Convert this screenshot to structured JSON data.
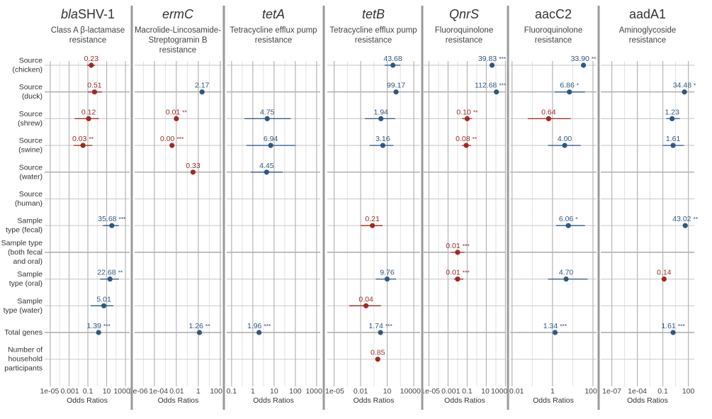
{
  "chart_data": {
    "type": "forest",
    "x_scale": "log",
    "xlabel": "Odds Ratios",
    "colors": {
      "positive": "#2f5782",
      "negative": "#9e2a24"
    },
    "rows": [
      {
        "lines": [
          "Source",
          "(chicken)"
        ]
      },
      {
        "lines": [
          "Source",
          "(duck)"
        ]
      },
      {
        "lines": [
          "Source",
          "(shrew)"
        ]
      },
      {
        "lines": [
          "Source",
          "(swine)"
        ]
      },
      {
        "lines": [
          "Source",
          "(water)"
        ]
      },
      {
        "lines": [
          "Source",
          "(human)"
        ]
      },
      {
        "lines": [
          "Sample",
          "type (fecal)"
        ]
      },
      {
        "lines": [
          "Sample type",
          "(both fecal",
          "and oral)"
        ]
      },
      {
        "lines": [
          "Sample",
          "type (oral)"
        ]
      },
      {
        "lines": [
          "Sample",
          "type (water)"
        ]
      },
      {
        "lines": [
          "Total genes"
        ]
      },
      {
        "lines": [
          "Number of",
          "household",
          "participants"
        ]
      }
    ],
    "panels": [
      {
        "gene_italic": "bla",
        "gene_plain": "SHV-1",
        "subtitle": [
          "Class A β-lactamase",
          "resistance"
        ],
        "xlim": [
          2.5e-06,
          2800
        ],
        "ticks": [
          "1e-05",
          "0.001",
          "0.1",
          "10",
          "1000"
        ],
        "tick_values": [
          1e-05,
          0.001,
          0.1,
          10,
          1000
        ],
        "points": [
          {
            "row": 0,
            "or": 0.23,
            "label": "0.23",
            "sig": "",
            "ci": [
              0.08,
              0.6
            ]
          },
          {
            "row": 1,
            "or": 0.51,
            "label": "0.51",
            "sig": "",
            "ci": [
              0.1,
              3
            ]
          },
          {
            "row": 2,
            "or": 0.12,
            "label": "0.12",
            "sig": "",
            "ci": [
              0.004,
              1.5
            ]
          },
          {
            "row": 3,
            "or": 0.03,
            "label": "0.03",
            "sig": "**",
            "ci": [
              0.003,
              0.3
            ]
          },
          {
            "row": 6,
            "or": 35.68,
            "label": "35.68",
            "sig": "***",
            "ci": [
              4,
              200
            ]
          },
          {
            "row": 8,
            "or": 22.68,
            "label": "22.68",
            "sig": "**",
            "ci": [
              2,
              200
            ]
          },
          {
            "row": 9,
            "or": 5.01,
            "label": "5.01",
            "sig": "",
            "ci": [
              0.2,
              50
            ]
          },
          {
            "row": 10,
            "or": 1.39,
            "label": "1.39",
            "sig": "***",
            "ci": null
          }
        ]
      },
      {
        "gene_italic": "ermC",
        "gene_plain": "",
        "subtitle": [
          "Macrolide-Lincosamide-",
          "Streptogramin B",
          "resistance"
        ],
        "xlim": [
          1.6e-06,
          135
        ],
        "ticks": [
          "1e-06",
          "1e-04",
          "0.01",
          "1",
          "100"
        ],
        "tick_values": [
          1e-06,
          0.0001,
          0.01,
          1,
          100
        ],
        "points": [
          {
            "row": 1,
            "or": 2.17,
            "label": "2.17",
            "sig": "",
            "ci": null
          },
          {
            "row": 2,
            "or": 0.01,
            "label": "0.01",
            "sig": "**",
            "ci": null
          },
          {
            "row": 3,
            "or": 0.004,
            "label": "0.00",
            "sig": "***",
            "ci": null
          },
          {
            "row": 4,
            "or": 0.33,
            "label": "0.33",
            "sig": "",
            "ci": null
          },
          {
            "row": 10,
            "or": 1.26,
            "label": "1.26",
            "sig": "**",
            "ci": null
          }
        ]
      },
      {
        "gene_italic": "tetA",
        "gene_plain": "",
        "subtitle": [
          "Tetracycline efflux pump",
          "resistance"
        ],
        "xlim": [
          0.059,
          1480
        ],
        "ticks": [
          "0.1",
          "1",
          "10",
          "100",
          "1000"
        ],
        "tick_values": [
          0.1,
          1,
          10,
          100,
          1000
        ],
        "points": [
          {
            "row": 2,
            "or": 4.75,
            "label": "4.75",
            "sig": "",
            "ci": [
              0.4,
              60
            ]
          },
          {
            "row": 3,
            "or": 6.94,
            "label": "6.94",
            "sig": "",
            "ci": [
              0.5,
              100
            ]
          },
          {
            "row": 4,
            "or": 4.45,
            "label": "4.45",
            "sig": "",
            "ci": [
              0.8,
              25
            ]
          },
          {
            "row": 10,
            "or": 1.96,
            "label": "1.96",
            "sig": "***",
            "ci": null
          }
        ]
      },
      {
        "gene_italic": "tetB",
        "gene_plain": "",
        "subtitle": [
          "Tetracycline efflux pump",
          "resistance"
        ],
        "xlim": [
          1.7e-06,
          52000
        ],
        "ticks": [
          "1e-05",
          "0.01",
          "10",
          "10000"
        ],
        "tick_values": [
          1e-05,
          0.01,
          10,
          10000
        ],
        "points": [
          {
            "row": 0,
            "or": 43.68,
            "label": "43.68",
            "sig": "",
            "ci": [
              5,
              300
            ]
          },
          {
            "row": 1,
            "or": 99.17,
            "label": "99.17",
            "sig": "",
            "ci": null
          },
          {
            "row": 2,
            "or": 1.94,
            "label": "1.94",
            "sig": "",
            "ci": [
              0.03,
              80
            ]
          },
          {
            "row": 3,
            "or": 3.16,
            "label": "3.16",
            "sig": "",
            "ci": [
              0.1,
              50
            ]
          },
          {
            "row": 6,
            "or": 0.21,
            "label": "0.21",
            "sig": "",
            "ci": [
              0.01,
              3
            ]
          },
          {
            "row": 8,
            "or": 9.76,
            "label": "9.76",
            "sig": "",
            "ci": [
              0.5,
              100
            ]
          },
          {
            "row": 9,
            "or": 0.04,
            "label": "0.04",
            "sig": "",
            "ci": [
              0.0005,
              2
            ]
          },
          {
            "row": 10,
            "or": 1.74,
            "label": "1.74",
            "sig": "***",
            "ci": null
          },
          {
            "row": 11,
            "or": 0.85,
            "label": "0.85",
            "sig": "",
            "ci": null
          }
        ]
      },
      {
        "gene_italic": "QnrS",
        "gene_plain": "",
        "subtitle": [
          "Fluoroquinolone",
          "resistance"
        ],
        "xlim": [
          2.8e-06,
          1100
        ],
        "ticks": [
          "1e-05",
          "0.001",
          "0.1",
          "10",
          "1000"
        ],
        "tick_values": [
          1e-05,
          0.001,
          0.1,
          10,
          1000
        ],
        "points": [
          {
            "row": 0,
            "or": 39.83,
            "label": "39.83",
            "sig": "***",
            "ci": null
          },
          {
            "row": 1,
            "or": 112.68,
            "label": "112.68",
            "sig": "***",
            "ci": null
          },
          {
            "row": 2,
            "or": 0.1,
            "label": "0.10",
            "sig": "**",
            "ci": [
              0.03,
              0.3
            ]
          },
          {
            "row": 3,
            "or": 0.08,
            "label": "0.08",
            "sig": "**",
            "ci": [
              0.03,
              0.25
            ]
          },
          {
            "row": 7,
            "or": 0.01,
            "label": "0.01",
            "sig": "***",
            "ci": [
              0.002,
              0.05
            ]
          },
          {
            "row": 8,
            "or": 0.01,
            "label": "0.01",
            "sig": "***",
            "ci": [
              0.004,
              0.04
            ]
          }
        ]
      },
      {
        "gene_italic": "",
        "gene_plain": "aacC2",
        "subtitle": [
          "Fluoroquinolone",
          "resistance"
        ],
        "xlim": [
          0.008,
          150
        ],
        "ticks": [
          "0.01",
          "1",
          "100"
        ],
        "tick_values": [
          0.01,
          1,
          100
        ],
        "points": [
          {
            "row": 0,
            "or": 33.9,
            "label": "33.90",
            "sig": "**",
            "ci": null
          },
          {
            "row": 1,
            "or": 6.86,
            "label": "6.86",
            "sig": "*",
            "ci": [
              1.3,
              40
            ]
          },
          {
            "row": 2,
            "or": 0.64,
            "label": "0.64",
            "sig": "",
            "ci": [
              0.06,
              8
            ]
          },
          {
            "row": 3,
            "or": 4.0,
            "label": "4.00",
            "sig": "",
            "ci": [
              0.6,
              25
            ]
          },
          {
            "row": 6,
            "or": 6.06,
            "label": "6.06",
            "sig": "*",
            "ci": [
              1.5,
              40
            ]
          },
          {
            "row": 8,
            "or": 4.7,
            "label": "4.70",
            "sig": "",
            "ci": [
              0.6,
              55
            ]
          },
          {
            "row": 10,
            "or": 1.34,
            "label": "1.34",
            "sig": "***",
            "ci": null
          }
        ]
      },
      {
        "gene_italic": "",
        "gene_plain": "aadA1",
        "subtitle": [
          "Aminoglycoside",
          "resistance"
        ],
        "xlim": [
          5e-09,
          500
        ],
        "ticks": [
          "1e-07",
          "1e-04",
          "0.1",
          "100"
        ],
        "tick_values": [
          1e-07,
          0.0001,
          0.1,
          100
        ],
        "points": [
          {
            "row": 1,
            "or": 34.48,
            "label": "34.48",
            "sig": "*",
            "ci": null
          },
          {
            "row": 2,
            "or": 1.23,
            "label": "1.23",
            "sig": "",
            "ci": [
              0.25,
              10
            ]
          },
          {
            "row": 3,
            "or": 1.61,
            "label": "1.61",
            "sig": "",
            "ci": [
              0.1,
              30
            ]
          },
          {
            "row": 6,
            "or": 43.02,
            "label": "43.02",
            "sig": "**",
            "ci": null
          },
          {
            "row": 8,
            "or": 0.14,
            "label": "0.14",
            "sig": "",
            "ci": null
          },
          {
            "row": 10,
            "or": 1.61,
            "label": "1.61",
            "sig": "***",
            "ci": null
          }
        ]
      }
    ]
  }
}
